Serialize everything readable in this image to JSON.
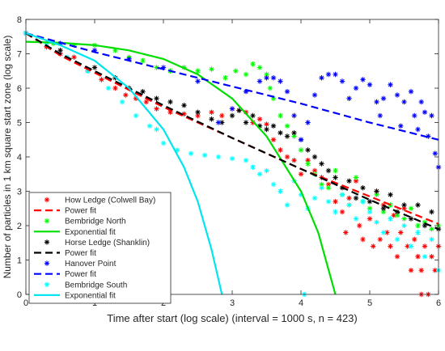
{
  "chart_data": {
    "type": "scatter",
    "xlabel": "Time after start (log scale) (interval = 1000 s, n = 423)",
    "ylabel": "Number of particles in 1 km square start zone (log scale)",
    "xlim": [
      0,
      6
    ],
    "ylim": [
      0,
      8
    ],
    "xticks": [
      "0",
      "1",
      "2",
      "3",
      "4",
      "5",
      "6"
    ],
    "yticks": [
      "0",
      "1",
      "2",
      "3",
      "4",
      "5",
      "6",
      "7",
      "8"
    ],
    "grid": false,
    "legend_position": "bottom-left",
    "series": [
      {
        "name": "How Ledge (Colwell Bay)",
        "kind": "scatter",
        "color": "#ff0000",
        "points": [
          [
            0.0,
            7.6
          ],
          [
            0.3,
            7.2
          ],
          [
            0.5,
            7.0
          ],
          [
            0.7,
            6.9
          ],
          [
            0.9,
            6.5
          ],
          [
            1.1,
            6.25
          ],
          [
            1.3,
            6.0
          ],
          [
            1.45,
            5.8
          ],
          [
            1.6,
            5.7
          ],
          [
            1.75,
            5.6
          ],
          [
            1.9,
            5.4
          ],
          [
            2.1,
            5.3
          ],
          [
            2.3,
            5.25
          ],
          [
            2.5,
            5.2
          ],
          [
            2.7,
            5.3
          ],
          [
            2.85,
            5.2
          ],
          [
            3.0,
            5.4
          ],
          [
            3.1,
            5.35
          ],
          [
            3.2,
            5.3
          ],
          [
            3.3,
            5.0
          ],
          [
            3.4,
            5.1
          ],
          [
            3.5,
            4.95
          ],
          [
            3.6,
            4.5
          ],
          [
            3.7,
            4.2
          ],
          [
            3.8,
            4.0
          ],
          [
            3.9,
            3.9
          ],
          [
            4.0,
            3.5
          ],
          [
            4.1,
            3.9
          ],
          [
            4.2,
            3.6
          ],
          [
            4.3,
            3.4
          ],
          [
            4.4,
            3.2
          ],
          [
            4.5,
            2.7
          ],
          [
            4.6,
            2.4
          ],
          [
            4.65,
            1.8
          ],
          [
            4.7,
            2.8
          ],
          [
            4.8,
            3.3
          ],
          [
            4.85,
            2.0
          ],
          [
            4.9,
            1.6
          ],
          [
            5.0,
            2.2
          ],
          [
            5.05,
            1.4
          ],
          [
            5.1,
            3.0
          ],
          [
            5.15,
            1.6
          ],
          [
            5.2,
            2.6
          ],
          [
            5.25,
            1.8
          ],
          [
            5.3,
            1.4
          ],
          [
            5.35,
            2.3
          ],
          [
            5.4,
            1.1
          ],
          [
            5.45,
            1.8
          ],
          [
            5.5,
            2.5
          ],
          [
            5.55,
            1.4
          ],
          [
            5.6,
            0.7
          ],
          [
            5.65,
            1.6
          ],
          [
            5.7,
            1.1
          ],
          [
            5.75,
            0.7
          ],
          [
            5.8,
            1.4
          ],
          [
            5.85,
            0.0
          ],
          [
            5.9,
            1.1
          ],
          [
            5.95,
            0.7
          ],
          [
            6.0,
            1.4
          ],
          [
            5.75,
            0.0
          ]
        ]
      },
      {
        "name": "Power fit",
        "kind": "line",
        "dash": "dashed",
        "color": "#ff0000",
        "points": [
          [
            0.0,
            7.6
          ],
          [
            0.5,
            6.95
          ],
          [
            1.0,
            6.45
          ],
          [
            2.0,
            5.45
          ],
          [
            3.0,
            4.55
          ],
          [
            4.0,
            3.65
          ],
          [
            5.0,
            2.85
          ],
          [
            6.0,
            2.05
          ]
        ]
      },
      {
        "name": "Bembridge North",
        "kind": "scatter",
        "color": "#00ff00",
        "points": [
          [
            0.0,
            7.6
          ],
          [
            0.4,
            7.3
          ],
          [
            0.7,
            7.25
          ],
          [
            1.0,
            7.25
          ],
          [
            1.3,
            7.1
          ],
          [
            1.5,
            6.9
          ],
          [
            1.7,
            6.8
          ],
          [
            1.9,
            6.6
          ],
          [
            2.1,
            6.5
          ],
          [
            2.3,
            6.6
          ],
          [
            2.5,
            6.5
          ],
          [
            2.7,
            6.55
          ],
          [
            2.9,
            6.3
          ],
          [
            3.05,
            6.5
          ],
          [
            3.2,
            6.4
          ],
          [
            3.3,
            6.7
          ],
          [
            3.4,
            6.6
          ],
          [
            3.5,
            6.4
          ],
          [
            3.55,
            6.0
          ],
          [
            3.6,
            5.7
          ],
          [
            3.7,
            5.2
          ],
          [
            3.8,
            4.9
          ],
          [
            3.9,
            4.6
          ],
          [
            4.0,
            4.2
          ],
          [
            4.1,
            3.8
          ],
          [
            4.2,
            3.5
          ],
          [
            4.3,
            3.2
          ],
          [
            4.4,
            3.1
          ],
          [
            4.5,
            3.6
          ],
          [
            4.6,
            2.9
          ],
          [
            4.7,
            2.6
          ],
          [
            4.8,
            3.4
          ],
          [
            4.9,
            2.7
          ],
          [
            5.0,
            2.5
          ],
          [
            5.1,
            2.9
          ],
          [
            5.2,
            2.4
          ],
          [
            5.3,
            2.6
          ],
          [
            5.4,
            2.3
          ],
          [
            5.5,
            2.2
          ],
          [
            5.6,
            2.5
          ],
          [
            5.7,
            2.0
          ],
          [
            5.8,
            2.1
          ],
          [
            5.9,
            1.9
          ],
          [
            6.0,
            2.0
          ]
        ]
      },
      {
        "name": "Exponential fit",
        "kind": "line",
        "dash": "solid",
        "color": "#00dd00",
        "points": [
          [
            0.0,
            7.35
          ],
          [
            0.5,
            7.32
          ],
          [
            1.0,
            7.25
          ],
          [
            1.5,
            7.1
          ],
          [
            2.0,
            6.85
          ],
          [
            2.5,
            6.4
          ],
          [
            3.0,
            5.7
          ],
          [
            3.5,
            4.6
          ],
          [
            4.0,
            3.0
          ],
          [
            4.25,
            1.8
          ],
          [
            4.5,
            0.0
          ]
        ]
      },
      {
        "name": "Horse Ledge (Shanklin)",
        "kind": "scatter",
        "color": "#000000",
        "points": [
          [
            0.0,
            7.6
          ],
          [
            0.5,
            7.1
          ],
          [
            1.0,
            6.6
          ],
          [
            1.3,
            6.3
          ],
          [
            1.5,
            6.0
          ],
          [
            1.7,
            5.9
          ],
          [
            1.9,
            5.7
          ],
          [
            2.1,
            5.6
          ],
          [
            2.3,
            5.5
          ],
          [
            2.5,
            5.3
          ],
          [
            2.7,
            5.1
          ],
          [
            2.85,
            5.0
          ],
          [
            3.0,
            5.2
          ],
          [
            3.1,
            5.35
          ],
          [
            3.2,
            5.0
          ],
          [
            3.3,
            5.2
          ],
          [
            3.4,
            4.9
          ],
          [
            3.5,
            4.8
          ],
          [
            3.6,
            4.9
          ],
          [
            3.7,
            4.7
          ],
          [
            3.8,
            4.6
          ],
          [
            3.9,
            4.7
          ],
          [
            4.0,
            4.5
          ],
          [
            4.1,
            4.2
          ],
          [
            4.2,
            4.0
          ],
          [
            4.3,
            3.8
          ],
          [
            4.4,
            3.6
          ],
          [
            4.5,
            3.4
          ],
          [
            4.6,
            3.1
          ],
          [
            4.7,
            3.3
          ],
          [
            4.8,
            2.8
          ],
          [
            4.9,
            3.1
          ],
          [
            5.0,
            2.7
          ],
          [
            5.1,
            3.0
          ],
          [
            5.2,
            2.5
          ],
          [
            5.3,
            2.9
          ],
          [
            5.4,
            2.4
          ],
          [
            5.5,
            2.6
          ],
          [
            5.6,
            2.2
          ],
          [
            5.7,
            2.6
          ],
          [
            5.8,
            2.0
          ],
          [
            5.9,
            2.4
          ],
          [
            6.0,
            1.9
          ]
        ]
      },
      {
        "name": "Power fit",
        "kind": "line",
        "dash": "dashed",
        "color": "#000000",
        "points": [
          [
            0.0,
            7.6
          ],
          [
            0.5,
            7.0
          ],
          [
            1.0,
            6.5
          ],
          [
            2.0,
            5.5
          ],
          [
            3.0,
            4.55
          ],
          [
            4.0,
            3.65
          ],
          [
            5.0,
            2.75
          ],
          [
            6.0,
            1.9
          ]
        ]
      },
      {
        "name": "Hanover Point",
        "kind": "scatter",
        "color": "#0000ff",
        "points": [
          [
            0.0,
            7.6
          ],
          [
            0.5,
            7.3
          ],
          [
            1.0,
            7.1
          ],
          [
            1.5,
            6.85
          ],
          [
            2.0,
            6.6
          ],
          [
            2.5,
            6.2
          ],
          [
            2.8,
            5.0
          ],
          [
            3.0,
            5.4
          ],
          [
            3.2,
            5.9
          ],
          [
            3.4,
            6.2
          ],
          [
            3.5,
            6.3
          ],
          [
            3.6,
            6.3
          ],
          [
            3.7,
            6.2
          ],
          [
            3.8,
            5.9
          ],
          [
            3.9,
            5.2
          ],
          [
            4.0,
            4.5
          ],
          [
            4.1,
            5.0
          ],
          [
            4.2,
            5.8
          ],
          [
            4.3,
            6.3
          ],
          [
            4.4,
            6.4
          ],
          [
            4.5,
            6.4
          ],
          [
            4.6,
            6.2
          ],
          [
            4.7,
            5.7
          ],
          [
            4.8,
            6.0
          ],
          [
            4.9,
            6.25
          ],
          [
            5.0,
            6.1
          ],
          [
            5.1,
            5.6
          ],
          [
            5.15,
            5.2
          ],
          [
            5.2,
            5.7
          ],
          [
            5.3,
            6.1
          ],
          [
            5.4,
            5.8
          ],
          [
            5.45,
            4.9
          ],
          [
            5.5,
            5.6
          ],
          [
            5.6,
            5.9
          ],
          [
            5.65,
            5.2
          ],
          [
            5.7,
            4.8
          ],
          [
            5.75,
            5.6
          ],
          [
            5.8,
            5.3
          ],
          [
            5.85,
            4.6
          ],
          [
            5.9,
            5.2
          ],
          [
            5.95,
            4.1
          ],
          [
            6.0,
            3.7
          ]
        ]
      },
      {
        "name": "Power fit",
        "kind": "line",
        "dash": "dashed",
        "color": "#0000ff",
        "points": [
          [
            0.0,
            7.6
          ],
          [
            1.0,
            7.05
          ],
          [
            2.0,
            6.55
          ],
          [
            3.0,
            6.05
          ],
          [
            4.0,
            5.55
          ],
          [
            5.0,
            5.0
          ],
          [
            6.0,
            4.5
          ]
        ]
      },
      {
        "name": "Bembridge South",
        "kind": "scatter",
        "color": "#00ffff",
        "points": [
          [
            0.0,
            7.6
          ],
          [
            0.3,
            7.3
          ],
          [
            0.6,
            6.9
          ],
          [
            0.9,
            6.5
          ],
          [
            1.2,
            6.0
          ],
          [
            1.4,
            5.6
          ],
          [
            1.6,
            5.2
          ],
          [
            1.8,
            4.9
          ],
          [
            1.9,
            4.8
          ],
          [
            2.0,
            4.4
          ],
          [
            2.2,
            4.2
          ],
          [
            2.4,
            4.1
          ],
          [
            2.6,
            4.05
          ],
          [
            2.8,
            4.0
          ],
          [
            3.0,
            3.95
          ],
          [
            3.2,
            3.9
          ],
          [
            3.3,
            3.7
          ],
          [
            3.4,
            3.5
          ],
          [
            3.5,
            3.6
          ],
          [
            3.6,
            3.2
          ],
          [
            3.7,
            3.0
          ],
          [
            3.8,
            2.6
          ],
          [
            3.9,
            3.3
          ],
          [
            4.0,
            2.9
          ],
          [
            4.05,
            0.0
          ],
          [
            4.1,
            2.5
          ],
          [
            4.2,
            2.8
          ],
          [
            4.3,
            3.1
          ],
          [
            4.4,
            2.7
          ],
          [
            4.5,
            2.4
          ],
          [
            4.6,
            2.9
          ],
          [
            4.7,
            2.6
          ],
          [
            4.8,
            2.2
          ],
          [
            4.9,
            2.7
          ],
          [
            5.0,
            2.4
          ],
          [
            5.1,
            2.1
          ],
          [
            5.2,
            1.8
          ],
          [
            5.3,
            2.2
          ],
          [
            5.4,
            1.6
          ],
          [
            5.5,
            2.0
          ],
          [
            5.6,
            1.4
          ],
          [
            5.7,
            1.8
          ],
          [
            5.8,
            1.1
          ],
          [
            5.9,
            1.6
          ],
          [
            6.0,
            0.7
          ]
        ]
      },
      {
        "name": "Exponential fit",
        "kind": "line",
        "dash": "solid",
        "color": "#00e5ee",
        "points": [
          [
            0.0,
            7.6
          ],
          [
            0.5,
            7.25
          ],
          [
            1.0,
            6.8
          ],
          [
            1.5,
            6.0
          ],
          [
            2.0,
            4.8
          ],
          [
            2.3,
            3.7
          ],
          [
            2.5,
            2.7
          ],
          [
            2.7,
            1.3
          ],
          [
            2.85,
            0.0
          ]
        ]
      }
    ]
  }
}
